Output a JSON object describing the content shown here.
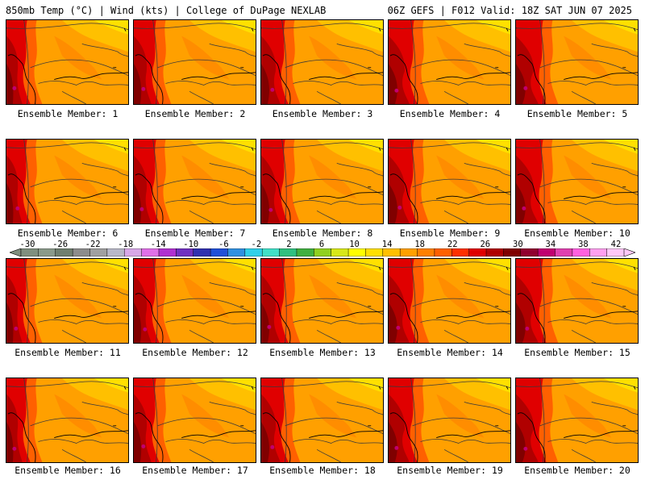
{
  "header": {
    "title_left": "850mb Temp (°C) | Wind (kts) | College of DuPage NEXLAB",
    "title_right": "06Z GEFS | F012 Valid: 18Z SAT JUN 07 2025"
  },
  "members": [
    {
      "label": "Ensemble Member: 1",
      "panel_name": "ensemble-member-1-map"
    },
    {
      "label": "Ensemble Member: 2",
      "panel_name": "ensemble-member-2-map"
    },
    {
      "label": "Ensemble Member: 3",
      "panel_name": "ensemble-member-3-map"
    },
    {
      "label": "Ensemble Member: 4",
      "panel_name": "ensemble-member-4-map"
    },
    {
      "label": "Ensemble Member: 5",
      "panel_name": "ensemble-member-5-map"
    },
    {
      "label": "Ensemble Member: 6",
      "panel_name": "ensemble-member-6-map"
    },
    {
      "label": "Ensemble Member: 7",
      "panel_name": "ensemble-member-7-map"
    },
    {
      "label": "Ensemble Member: 8",
      "panel_name": "ensemble-member-8-map"
    },
    {
      "label": "Ensemble Member: 9",
      "panel_name": "ensemble-member-9-map"
    },
    {
      "label": "Ensemble Member: 10",
      "panel_name": "ensemble-member-10-map"
    },
    {
      "label": "Ensemble Member: 11",
      "panel_name": "ensemble-member-11-map"
    },
    {
      "label": "Ensemble Member: 12",
      "panel_name": "ensemble-member-12-map"
    },
    {
      "label": "Ensemble Member: 13",
      "panel_name": "ensemble-member-13-map"
    },
    {
      "label": "Ensemble Member: 14",
      "panel_name": "ensemble-member-14-map"
    },
    {
      "label": "Ensemble Member: 15",
      "panel_name": "ensemble-member-15-map"
    },
    {
      "label": "Ensemble Member: 16",
      "panel_name": "ensemble-member-16-map"
    },
    {
      "label": "Ensemble Member: 17",
      "panel_name": "ensemble-member-17-map"
    },
    {
      "label": "Ensemble Member: 18",
      "panel_name": "ensemble-member-18-map"
    },
    {
      "label": "Ensemble Member: 19",
      "panel_name": "ensemble-member-19-map"
    },
    {
      "label": "Ensemble Member: 20",
      "panel_name": "ensemble-member-20-map"
    }
  ],
  "colorbar": {
    "labels": [
      "-30",
      "-26",
      "-22",
      "-18",
      "-14",
      "-10",
      "-6",
      "-2",
      "2",
      "6",
      "10",
      "14",
      "18",
      "22",
      "26",
      "30",
      "34",
      "38",
      "42"
    ],
    "colors": [
      "#7f8f7f",
      "#8a9a8a",
      "#6f7f6f",
      "#8c8c8c",
      "#a0a0a0",
      "#b8b8c8",
      "#d8a8e8",
      "#e070e8",
      "#b030d0",
      "#7030c0",
      "#3030b0",
      "#2050d8",
      "#3090e0",
      "#30d0e8",
      "#40e0c8",
      "#30c080",
      "#40b040",
      "#90d020",
      "#d8e818",
      "#ffff00",
      "#ffe000",
      "#ffc000",
      "#ffa000",
      "#ff8000",
      "#ff6000",
      "#ff3000",
      "#e00000",
      "#b00000",
      "#800000",
      "#900030",
      "#c00070",
      "#e040b0",
      "#ff60e0",
      "#ffa0f0",
      "#ffc8f8"
    ]
  }
}
